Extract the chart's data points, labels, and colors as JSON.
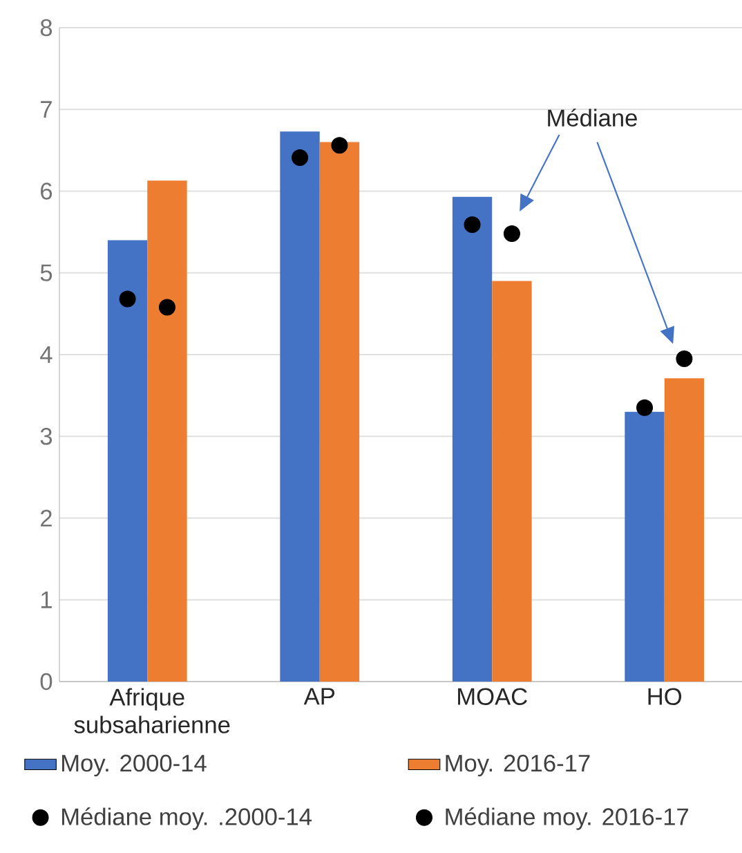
{
  "chart_data": {
    "type": "bar",
    "categories": [
      "Afrique subsaharienne",
      "AP",
      "MOAC",
      "HO"
    ],
    "series": [
      {
        "name": "Moy. 2000-14",
        "color": "#4472c4",
        "values": [
          5.4,
          6.73,
          5.93,
          3.3
        ]
      },
      {
        "name": "Moy. 2016-17",
        "color": "#ed7d31",
        "values": [
          6.13,
          6.6,
          4.9,
          3.71
        ]
      },
      {
        "name": "Médiane moy. .2000-14",
        "type": "scatter",
        "marker": "circle",
        "color": "#000000",
        "x": [
          "Afrique subsaharienne",
          "AP",
          "MOAC",
          "HO"
        ],
        "values": [
          4.68,
          6.41,
          5.59,
          3.35
        ]
      },
      {
        "name": "Médiane moy. 2016-17",
        "type": "scatter",
        "marker": "circle",
        "color": "#000000",
        "x": [
          "Afrique subsaharienne",
          "AP",
          "MOAC",
          "HO"
        ],
        "values": [
          4.58,
          6.56,
          5.48,
          3.95
        ]
      }
    ],
    "ylim": [
      0,
      8
    ],
    "yticks": [
      0,
      1,
      2,
      3,
      4,
      5,
      6,
      7,
      8
    ],
    "grid": "y",
    "legend": "bottom",
    "annotations": [
      "Médiane"
    ]
  }
}
